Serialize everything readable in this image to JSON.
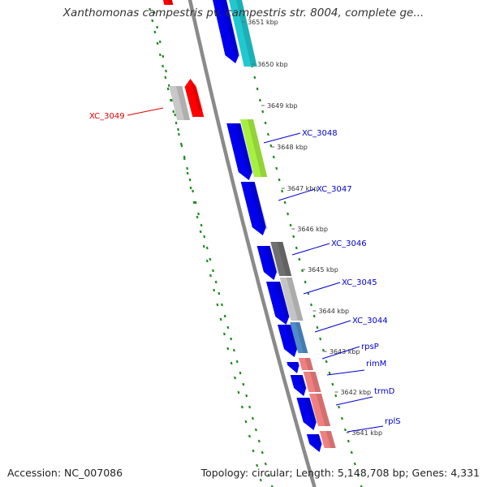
{
  "title": "Xanthomonas campestris pv. campestris str. 8004, complete ge...",
  "footer": {
    "accession": "Accession: NC_007086",
    "summary": "Topology: circular; Length: 5,148,708 bp; Genes: 4,331"
  },
  "colors": {
    "backbone": "#8a8a8a",
    "dots": "#1f8a1f",
    "forward_gene": "#ff0000",
    "forward_gray": "#c8c8c8",
    "blue": "#0000ee",
    "cyan": "#20c8d0",
    "lime": "#a8f040",
    "dark_gray": "#707070",
    "light_gray": "#c4c4c4",
    "steel": "#4f8cc8",
    "salmon": "#f08080"
  },
  "scale_ticks": [
    "3651 kbp",
    "3650 kbp",
    "3649 kbp",
    "3648 kbp",
    "3647 kbp",
    "3646 kbp",
    "3645 kbp",
    "3644 kbp",
    "3643 kbp",
    "3642 kbp",
    "3641 kbp"
  ],
  "gene_labels": [
    {
      "name": "XC_3049",
      "color": "#e00000"
    },
    {
      "name": "XC_3048",
      "color": "#0000cc"
    },
    {
      "name": "XC_3047",
      "color": "#0000cc"
    },
    {
      "name": "XC_3046",
      "color": "#0000cc"
    },
    {
      "name": "XC_3045",
      "color": "#0000cc"
    },
    {
      "name": "XC_3044",
      "color": "#0000cc"
    },
    {
      "name": "rpsP",
      "color": "#0000cc"
    },
    {
      "name": "rimM",
      "color": "#0000cc"
    },
    {
      "name": "trmD",
      "color": "#0000cc"
    },
    {
      "name": "rplS",
      "color": "#0000cc"
    }
  ]
}
